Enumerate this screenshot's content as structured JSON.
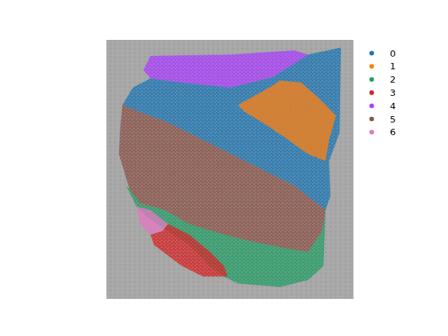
{
  "chart_data": {
    "type": "spatial",
    "tick_labels": false,
    "legend": "right",
    "xlim": [
      0,
      353
    ],
    "ylim": [
      0,
      370
    ],
    "series": [
      {
        "name": "0",
        "color": "#1f77b4",
        "x": [
          38,
          63,
          108,
          178,
          238,
          288,
          335,
          333,
          318,
          320,
          313,
          268,
          208,
          148,
          88,
          48,
          23
        ],
        "y": [
          302,
          315,
          309,
          302,
          317,
          349,
          359,
          237,
          197,
          147,
          127,
          162,
          192,
          222,
          252,
          267,
          277
        ]
      },
      {
        "name": "1",
        "color": "#ff7f0e",
        "x": [
          188,
          233,
          248,
          278,
          303,
          328,
          318,
          313,
          288,
          253,
          223,
          198
        ],
        "y": [
          277,
          302,
          312,
          309,
          287,
          262,
          227,
          197,
          207,
          232,
          252,
          267
        ]
      },
      {
        "name": "2",
        "color": "#279e68",
        "x": [
          33,
          48,
          83,
          118,
          168,
          208,
          258,
          288,
          308,
          313,
          310,
          288,
          248,
          188,
          168,
          148,
          118,
          88,
          58,
          43,
          28
        ],
        "y": [
          157,
          137,
          127,
          107,
          92,
          82,
          72,
          67,
          97,
          127,
          47,
          27,
          17,
          22,
          32,
          47,
          77,
          97,
          117,
          132,
          162
        ]
      },
      {
        "name": "3",
        "color": "#d62728",
        "x": [
          63,
          80,
          88,
          118,
          148,
          168,
          173,
          138,
          108,
          88,
          68
        ],
        "y": [
          92,
          97,
          107,
          92,
          67,
          47,
          32,
          32,
          47,
          62,
          77
        ]
      },
      {
        "name": "4",
        "color": "#aa40fc",
        "x": [
          63,
          178,
          268,
          288,
          238,
          178,
          108,
          63,
          53
        ],
        "y": [
          347,
          349,
          355,
          349,
          317,
          302,
          309,
          315,
          327
        ]
      },
      {
        "name": "5",
        "color": "#8c564b",
        "x": [
          23,
          48,
          88,
          148,
          208,
          268,
          313,
          308,
          288,
          258,
          208,
          168,
          118,
          83,
          48,
          33,
          18,
          20
        ],
        "y": [
          277,
          267,
          252,
          222,
          192,
          162,
          127,
          97,
          67,
          72,
          82,
          92,
          107,
          127,
          137,
          157,
          207,
          247
        ]
      },
      {
        "name": "6",
        "color": "#e377c2",
        "x": [
          43,
          63,
          88,
          80,
          63,
          48
        ],
        "y": [
          132,
          127,
          107,
          97,
          92,
          107
        ]
      }
    ]
  }
}
